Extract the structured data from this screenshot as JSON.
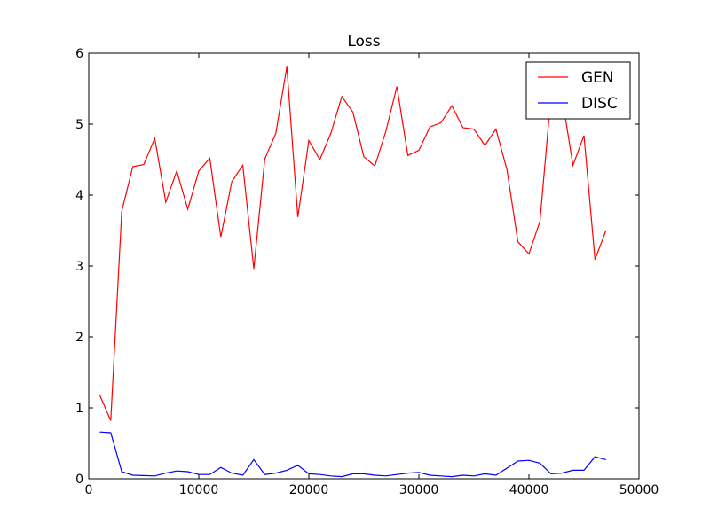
{
  "chart_data": {
    "type": "line",
    "title": "Loss",
    "xlabel": "",
    "ylabel": "",
    "xlim": [
      0,
      50000
    ],
    "ylim": [
      0,
      6
    ],
    "xticks": [
      0,
      10000,
      20000,
      30000,
      40000,
      50000
    ],
    "yticks": [
      0,
      1,
      2,
      3,
      4,
      5,
      6
    ],
    "grid": false,
    "legend_position": "top-right",
    "x": [
      1000,
      2000,
      3000,
      4000,
      5000,
      6000,
      7000,
      8000,
      9000,
      10000,
      11000,
      12000,
      13000,
      14000,
      15000,
      16000,
      17000,
      18000,
      19000,
      20000,
      21000,
      22000,
      23000,
      24000,
      25000,
      26000,
      27000,
      28000,
      29000,
      30000,
      31000,
      32000,
      33000,
      34000,
      35000,
      36000,
      37000,
      38000,
      39000,
      40000,
      41000,
      42000,
      43000,
      44000,
      45000,
      46000,
      47000
    ],
    "series": [
      {
        "name": "GEN",
        "color": "#ff0000",
        "values": [
          1.18,
          0.82,
          3.77,
          4.4,
          4.43,
          4.8,
          3.9,
          4.34,
          3.8,
          4.34,
          4.52,
          3.41,
          4.19,
          4.42,
          2.96,
          4.51,
          4.87,
          5.81,
          3.69,
          4.77,
          4.5,
          4.87,
          5.39,
          5.17,
          4.54,
          4.41,
          4.9,
          5.53,
          4.56,
          4.63,
          4.96,
          5.02,
          5.26,
          4.95,
          4.93,
          4.7,
          4.93,
          4.36,
          3.34,
          3.17,
          3.63,
          5.4,
          5.39,
          4.42,
          4.84,
          3.09,
          3.5
        ]
      },
      {
        "name": "DISC",
        "color": "#0000ff",
        "values": [
          0.66,
          0.65,
          0.1,
          0.05,
          0.045,
          0.04,
          0.08,
          0.11,
          0.1,
          0.06,
          0.06,
          0.16,
          0.08,
          0.05,
          0.27,
          0.06,
          0.08,
          0.12,
          0.19,
          0.07,
          0.06,
          0.04,
          0.03,
          0.07,
          0.07,
          0.05,
          0.04,
          0.06,
          0.08,
          0.09,
          0.05,
          0.04,
          0.03,
          0.05,
          0.04,
          0.07,
          0.05,
          0.15,
          0.25,
          0.26,
          0.22,
          0.07,
          0.08,
          0.12,
          0.12,
          0.31,
          0.27
        ]
      }
    ]
  }
}
